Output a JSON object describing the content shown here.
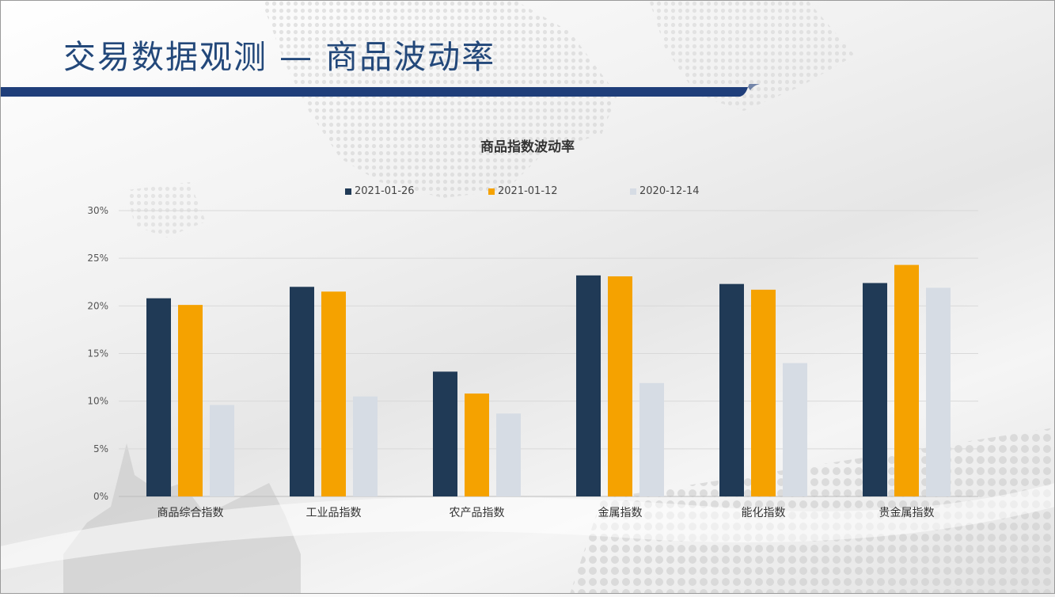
{
  "slide": {
    "title": "交易数据观测 — 商品波动率",
    "accent_color": "#1f3e7a"
  },
  "chart_data": {
    "type": "bar",
    "title": "商品指数波动率",
    "categories": [
      "商品综合指数",
      "工业品指数",
      "农产品指数",
      "金属指数",
      "能化指数",
      "贵金属指数"
    ],
    "series": [
      {
        "name": "2021-01-26",
        "color": "#203a56",
        "values": [
          20.8,
          22.0,
          13.1,
          23.2,
          22.3,
          22.4
        ]
      },
      {
        "name": "2021-01-12",
        "color": "#f5a200",
        "values": [
          20.1,
          21.5,
          10.8,
          23.1,
          21.7,
          24.3
        ]
      },
      {
        "name": "2020-12-14",
        "color": "#d6dce4",
        "values": [
          9.6,
          10.5,
          8.7,
          11.9,
          14.0,
          21.9
        ]
      }
    ],
    "yticks": [
      "0%",
      "5%",
      "10%",
      "15%",
      "20%",
      "25%",
      "30%"
    ],
    "ylim": [
      0,
      30
    ],
    "grid": true,
    "legend_position": "top"
  }
}
